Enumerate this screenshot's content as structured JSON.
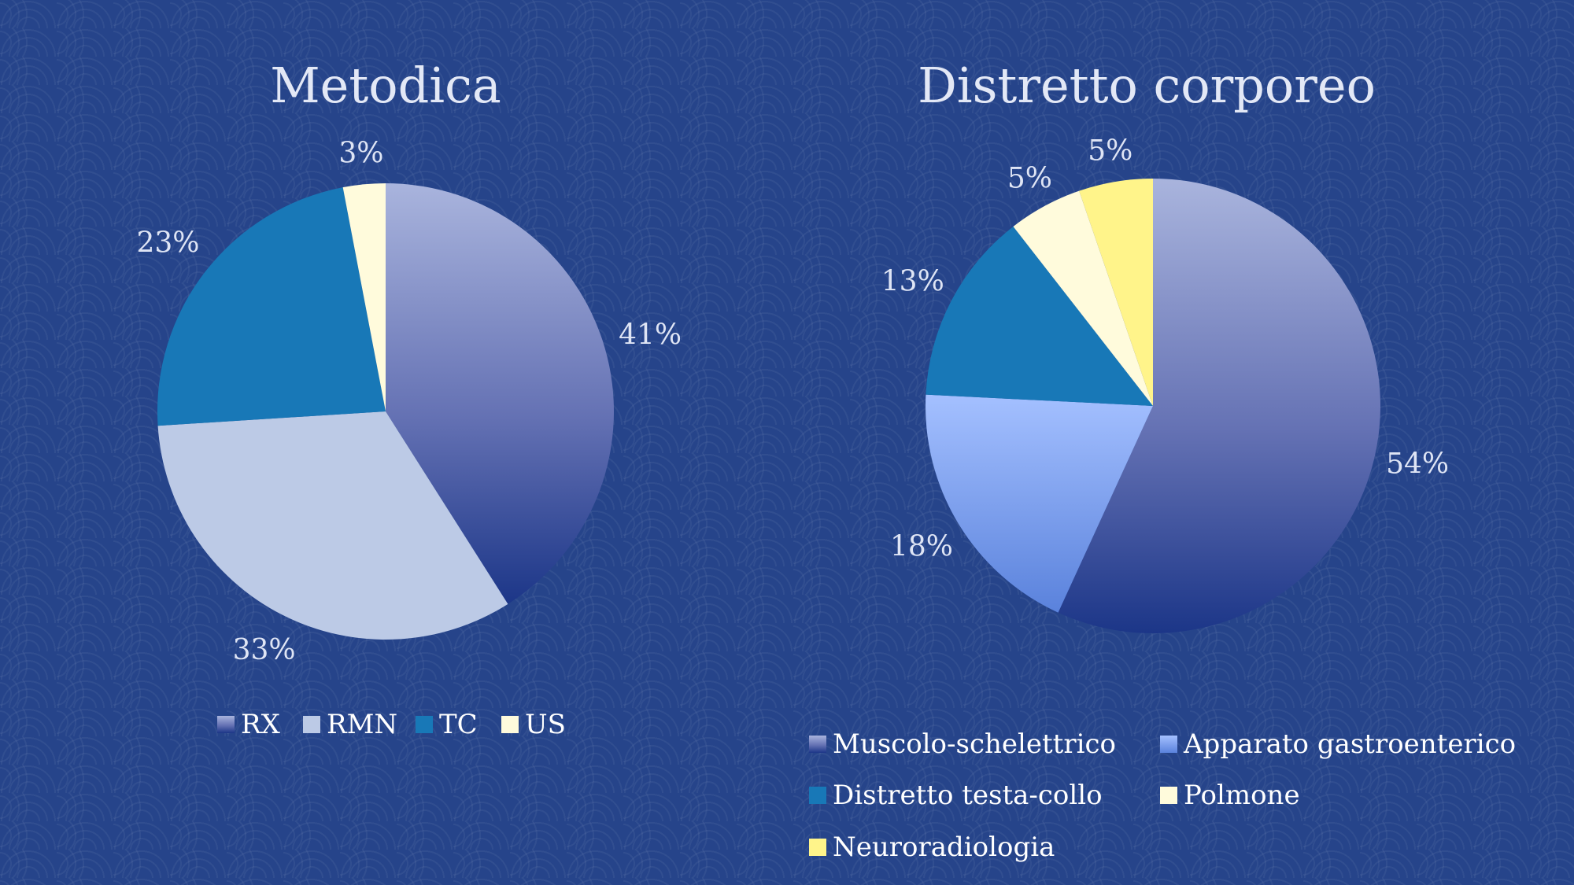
{
  "colors": {
    "background": "#26448a",
    "title_text": "#e3e8f6",
    "label_text": "#dfe5f5",
    "legend_text": "#ffffff"
  },
  "chart_data": [
    {
      "type": "pie",
      "title": "Metodica",
      "legend_position": "bottom",
      "slices": [
        {
          "label": "RX",
          "value": 41,
          "display": "41%",
          "color": "#8d9ccc",
          "gradient": [
            "#a9b4dd",
            "#1c3688"
          ]
        },
        {
          "label": "RMN",
          "value": 33,
          "display": "33%",
          "color": "#bccae6"
        },
        {
          "label": "TC",
          "value": 23,
          "display": "23%",
          "color": "#1878b7"
        },
        {
          "label": "US",
          "value": 3,
          "display": "3%",
          "color": "#fffbdc"
        }
      ]
    },
    {
      "type": "pie",
      "title": "Distretto corporeo",
      "legend_position": "bottom",
      "slices": [
        {
          "label": "Muscolo-schelettrico",
          "value": 54,
          "display": "54%",
          "color": "#8d9ccc",
          "gradient": [
            "#a9b4dd",
            "#1c3688"
          ]
        },
        {
          "label": "Apparato gastroenterico",
          "value": 18,
          "display": "18%",
          "color": "#86aaf5",
          "gradient": [
            "#9fbcff",
            "#5a82dc"
          ]
        },
        {
          "label": "Distretto testa-collo",
          "value": 13,
          "display": "13%",
          "color": "#1878b7"
        },
        {
          "label": "Polmone",
          "value": 5,
          "display": "5%",
          "color": "#fffbdc"
        },
        {
          "label": "Neuroradiologia",
          "value": 5,
          "display": "5%",
          "color": "#fff48a"
        }
      ]
    }
  ]
}
